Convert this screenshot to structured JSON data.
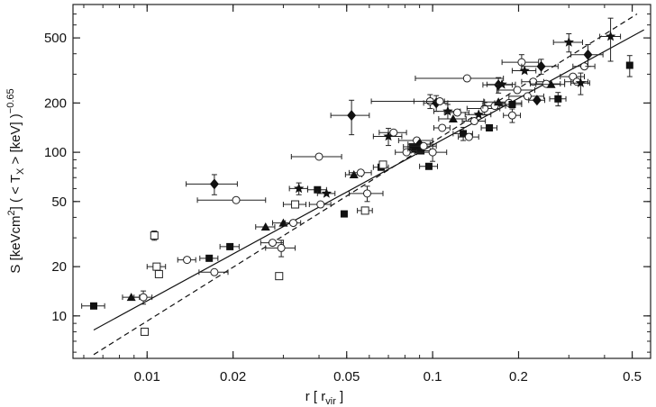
{
  "chart_data": {
    "type": "scatter",
    "title": "",
    "xlabel": {
      "main": "r  [ r",
      "sub": "vir",
      "close": " ]"
    },
    "ylabel": {
      "p1": "S  [keVcm",
      "sup": "2",
      "p2": "]  ( < T",
      "sub": "X",
      "p3": " > [keV] )",
      "exp": "−0.65"
    },
    "x_scale": "log",
    "y_scale": "log",
    "xlim": [
      0.0055,
      0.58
    ],
    "ylim": [
      5.5,
      800
    ],
    "x_ticks": [
      {
        "value": 0.01,
        "label": "0.01"
      },
      {
        "value": 0.02,
        "label": "0.02"
      },
      {
        "value": 0.05,
        "label": "0.05"
      },
      {
        "value": 0.1,
        "label": "0.1"
      },
      {
        "value": 0.2,
        "label": "0.2"
      },
      {
        "value": 0.5,
        "label": "0.5"
      }
    ],
    "y_ticks": [
      {
        "value": 10,
        "label": "10"
      },
      {
        "value": 20,
        "label": "20"
      },
      {
        "value": 50,
        "label": "50"
      },
      {
        "value": 100,
        "label": "100"
      },
      {
        "value": 200,
        "label": "200"
      },
      {
        "value": 500,
        "label": "500"
      }
    ],
    "grid": false,
    "legend": "none",
    "lines": [
      {
        "style": "solid",
        "points": [
          [
            0.0065,
            8.2
          ],
          [
            0.55,
            560
          ]
        ]
      },
      {
        "style": "dashed",
        "points": [
          [
            0.0065,
            5.8
          ],
          [
            0.52,
            700
          ]
        ]
      }
    ],
    "points": [
      {
        "x": 0.0065,
        "y": 11.5,
        "m": "sq",
        "xe": 0.0006
      },
      {
        "x": 0.0088,
        "y": 13,
        "m": "tri",
        "xe": 0.0006
      },
      {
        "x": 0.0097,
        "y": 13,
        "m": "oc",
        "xe": 0.0007,
        "ye": 1.2
      },
      {
        "x": 0.0098,
        "y": 8,
        "m": "os"
      },
      {
        "x": 0.0106,
        "y": 31,
        "m": "os",
        "ye": 2
      },
      {
        "x": 0.0108,
        "y": 20,
        "m": "os",
        "xe": 0.0008
      },
      {
        "x": 0.011,
        "y": 18,
        "m": "os"
      },
      {
        "x": 0.0138,
        "y": 22,
        "m": "oc",
        "xe": 0.001
      },
      {
        "x": 0.0165,
        "y": 22.5,
        "m": "sq",
        "xe": 0.0012
      },
      {
        "x": 0.0172,
        "y": 18.5,
        "m": "oc",
        "xe": 0.002
      },
      {
        "x": 0.0172,
        "y": 64,
        "m": "dia",
        "xe": 0.0035,
        "ye": 9
      },
      {
        "x": 0.0195,
        "y": 26.5,
        "m": "sq",
        "xe": 0.0015
      },
      {
        "x": 0.0205,
        "y": 51,
        "m": "oc",
        "xe": 0.0055
      },
      {
        "x": 0.026,
        "y": 35,
        "m": "tri",
        "xe": 0.002
      },
      {
        "x": 0.0275,
        "y": 28,
        "m": "oc",
        "xe": 0.0025
      },
      {
        "x": 0.029,
        "y": 17.5,
        "m": "os"
      },
      {
        "x": 0.0295,
        "y": 26,
        "m": "oc",
        "xe": 0.0035,
        "ye": 3
      },
      {
        "x": 0.03,
        "y": 37,
        "m": "tri",
        "xe": 0.0025
      },
      {
        "x": 0.0325,
        "y": 37,
        "m": "oc",
        "xe": 0.002
      },
      {
        "x": 0.033,
        "y": 48,
        "m": "os",
        "xe": 0.003
      },
      {
        "x": 0.034,
        "y": 60,
        "m": "star",
        "xe": 0.0025,
        "ye": 5
      },
      {
        "x": 0.04,
        "y": 94,
        "m": "oc",
        "xe": 0.008
      },
      {
        "x": 0.0395,
        "y": 59,
        "m": "sq",
        "xe": 0.003
      },
      {
        "x": 0.0405,
        "y": 48,
        "m": "oc",
        "xe": 0.0035
      },
      {
        "x": 0.0425,
        "y": 56,
        "m": "star",
        "xe": 0.003
      },
      {
        "x": 0.049,
        "y": 42,
        "m": "sq"
      },
      {
        "x": 0.052,
        "y": 168,
        "m": "dia",
        "xe": 0.008,
        "ye": 40
      },
      {
        "x": 0.053,
        "y": 73,
        "m": "tri",
        "xe": 0.0035
      },
      {
        "x": 0.056,
        "y": 75,
        "m": "oc",
        "xe": 0.005
      },
      {
        "x": 0.058,
        "y": 44,
        "m": "os",
        "xe": 0.0035
      },
      {
        "x": 0.059,
        "y": 56,
        "m": "oc",
        "xe": 0.008,
        "ye": 6
      },
      {
        "x": 0.066,
        "y": 81,
        "m": "sq",
        "xe": 0.004
      },
      {
        "x": 0.067,
        "y": 84,
        "m": "os"
      },
      {
        "x": 0.07,
        "y": 125,
        "m": "star",
        "xe": 0.008,
        "ye": 15
      },
      {
        "x": 0.073,
        "y": 132,
        "m": "oc",
        "xe": 0.008
      },
      {
        "x": 0.081,
        "y": 100,
        "m": "oc",
        "xe": 0.007
      },
      {
        "x": 0.085,
        "y": 108,
        "m": "sq",
        "xe": 0.006
      },
      {
        "x": 0.087,
        "y": 105,
        "m": "sq",
        "xe": 0.005
      },
      {
        "x": 0.088,
        "y": 118,
        "m": "oc",
        "xe": 0.012
      },
      {
        "x": 0.09,
        "y": 112,
        "m": "dia",
        "xe": 0.008
      },
      {
        "x": 0.091,
        "y": 102,
        "m": "sq",
        "xe": 0.007
      },
      {
        "x": 0.093,
        "y": 109,
        "m": "oc",
        "xe": 0.01
      },
      {
        "x": 0.097,
        "y": 82,
        "m": "sq",
        "xe": 0.007
      },
      {
        "x": 0.098,
        "y": 205,
        "m": "oc",
        "xe": 0.012,
        "ye": 20
      },
      {
        "x": 0.1,
        "y": 100,
        "m": "oc",
        "xe": 0.012,
        "ye": 12
      },
      {
        "x": 0.103,
        "y": 200,
        "m": "dia",
        "xe": 0.01,
        "ye": 22
      },
      {
        "x": 0.106,
        "y": 205,
        "m": "oc",
        "xe": 0.045
      },
      {
        "x": 0.108,
        "y": 141,
        "m": "oc",
        "xe": 0.007
      },
      {
        "x": 0.113,
        "y": 178,
        "m": "star",
        "xe": 0.012,
        "ye": 18
      },
      {
        "x": 0.118,
        "y": 160,
        "m": "tri",
        "xe": 0.013
      },
      {
        "x": 0.122,
        "y": 175,
        "m": "oc",
        "xe": 0.012
      },
      {
        "x": 0.128,
        "y": 130,
        "m": "sq",
        "xe": 0.01,
        "ye": 12
      },
      {
        "x": 0.132,
        "y": 283,
        "m": "oc",
        "xe": 0.045
      },
      {
        "x": 0.134,
        "y": 124,
        "m": "oc",
        "xe": 0.011
      },
      {
        "x": 0.14,
        "y": 155,
        "m": "oc",
        "xe": 0.013
      },
      {
        "x": 0.145,
        "y": 170,
        "m": "star",
        "xe": 0.015
      },
      {
        "x": 0.152,
        "y": 185,
        "m": "oc",
        "xe": 0.02,
        "ye": 16
      },
      {
        "x": 0.158,
        "y": 141,
        "m": "sq",
        "xe": 0.01
      },
      {
        "x": 0.165,
        "y": 192,
        "m": "oc",
        "xe": 0.015
      },
      {
        "x": 0.17,
        "y": 258,
        "m": "dia",
        "xe": 0.02,
        "ye": 28
      },
      {
        "x": 0.175,
        "y": 260,
        "m": "star",
        "xe": 0.02
      },
      {
        "x": 0.17,
        "y": 203,
        "m": "tri",
        "xe": 0.018
      },
      {
        "x": 0.185,
        "y": 200,
        "m": "oc",
        "xe": 0.02
      },
      {
        "x": 0.19,
        "y": 168,
        "m": "oc",
        "xe": 0.013,
        "ye": 16
      },
      {
        "x": 0.19,
        "y": 196,
        "m": "sq",
        "xe": 0.015
      },
      {
        "x": 0.198,
        "y": 240,
        "m": "oc",
        "xe": 0.03
      },
      {
        "x": 0.205,
        "y": 355,
        "m": "oc",
        "xe": 0.03,
        "ye": 40
      },
      {
        "x": 0.21,
        "y": 315,
        "m": "star",
        "xe": 0.02
      },
      {
        "x": 0.215,
        "y": 220,
        "m": "oc",
        "xe": 0.03
      },
      {
        "x": 0.225,
        "y": 270,
        "m": "oc",
        "xe": 0.02
      },
      {
        "x": 0.232,
        "y": 208,
        "m": "dia",
        "xe": 0.015
      },
      {
        "x": 0.24,
        "y": 335,
        "m": "dia",
        "xe": 0.035,
        "ye": 35
      },
      {
        "x": 0.25,
        "y": 262,
        "m": "oc",
        "xe": 0.03
      },
      {
        "x": 0.26,
        "y": 260,
        "m": "tri",
        "xe": 0.03
      },
      {
        "x": 0.275,
        "y": 212,
        "m": "sq",
        "xe": 0.018,
        "ye": 20
      },
      {
        "x": 0.3,
        "y": 470,
        "m": "star",
        "xe": 0.035,
        "ye": 60
      },
      {
        "x": 0.31,
        "y": 290,
        "m": "oc",
        "xe": 0.03
      },
      {
        "x": 0.32,
        "y": 270,
        "m": "oc",
        "xe": 0.03
      },
      {
        "x": 0.33,
        "y": 265,
        "m": "star",
        "xe": 0.025,
        "ye": 40
      },
      {
        "x": 0.34,
        "y": 335,
        "m": "oc",
        "xe": 0.03
      },
      {
        "x": 0.35,
        "y": 395,
        "m": "dia",
        "xe": 0.045,
        "ye": 60
      },
      {
        "x": 0.42,
        "y": 510,
        "m": "star",
        "xe": 0.035,
        "ye": 150
      },
      {
        "x": 0.49,
        "y": 340,
        "m": "sq",
        "ye": 50
      }
    ]
  }
}
